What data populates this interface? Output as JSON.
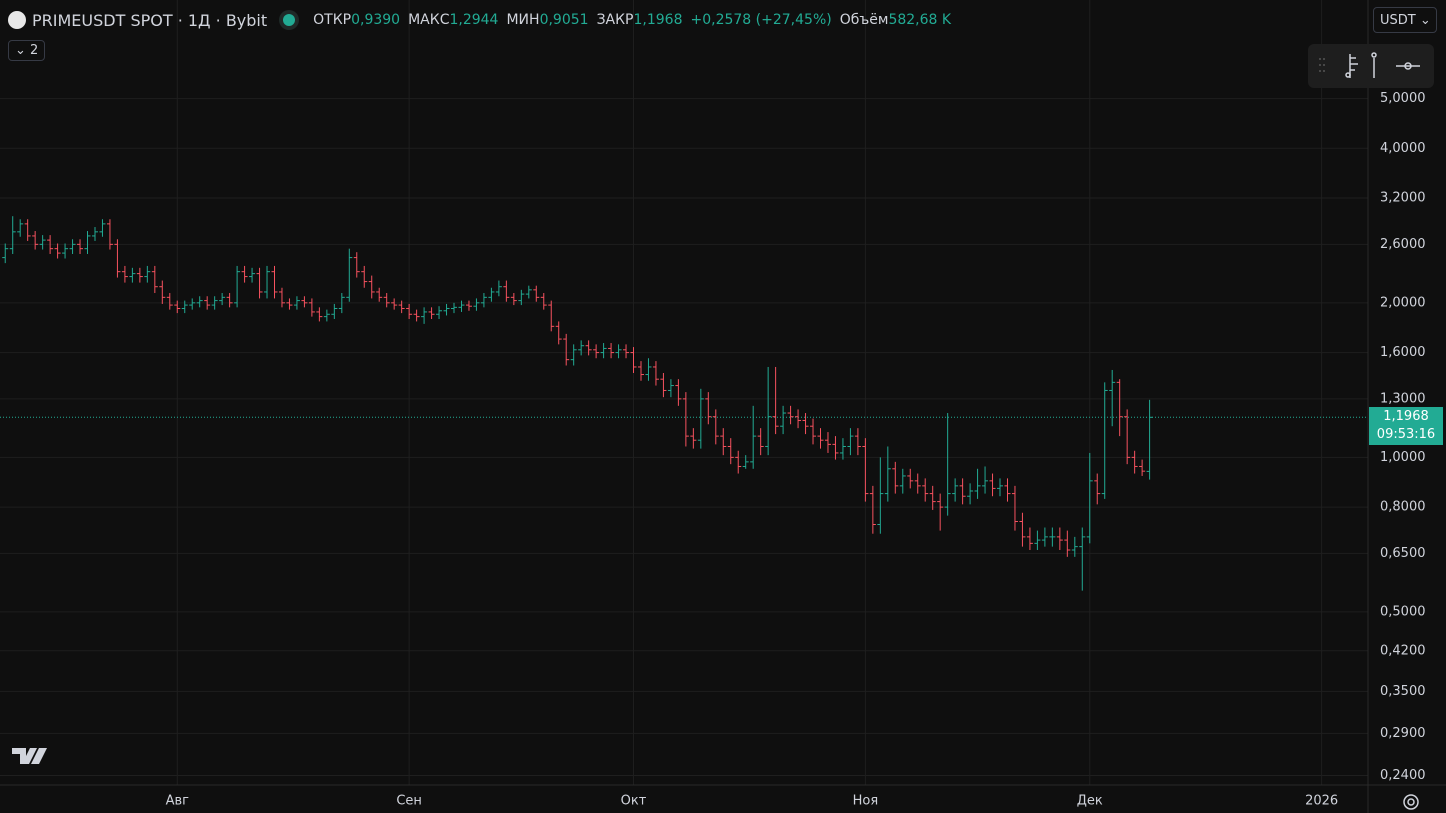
{
  "header": {
    "symbol": "PRIMEUSDT SPOT · 1Д · Bybit",
    "open_label": "ОТКР",
    "open": "0,9390",
    "high_label": "МАКС",
    "high": "1,2944",
    "low_label": "МИН",
    "low": "0,9051",
    "close_label": "ЗАКР",
    "close": "1,1968",
    "change": "+0,2578 (+27,45%)",
    "volume_label": "Объём",
    "volume": "582,68 K",
    "indicators": "2",
    "currency": "USDT"
  },
  "chart_data": {
    "type": "ohlc",
    "log_scale": true,
    "grid": true,
    "up_color": "#22ab94",
    "down_color": "#f7525f",
    "current_price": 1.1968,
    "price_label": "1,1968",
    "countdown": "09:53:16",
    "xlim": [
      -0.7,
      182.2
    ],
    "xticks": [
      {
        "value": 23,
        "label": "Авг"
      },
      {
        "value": 54,
        "label": "Сен"
      },
      {
        "value": 84,
        "label": "Окт"
      },
      {
        "value": 115,
        "label": "Ноя"
      },
      {
        "value": 145,
        "label": "Дек"
      },
      {
        "value": 176,
        "label": "2026"
      }
    ],
    "ylim": [
      0.23,
      7.78
    ],
    "yticks": [
      {
        "value": 5,
        "label": "5,0000"
      },
      {
        "value": 4,
        "label": "4,0000"
      },
      {
        "value": 3.2,
        "label": "3,2000"
      },
      {
        "value": 2.6,
        "label": "2,6000"
      },
      {
        "value": 2,
        "label": "2,0000"
      },
      {
        "value": 1.6,
        "label": "1,6000"
      },
      {
        "value": 1.3,
        "label": "1,3000"
      },
      {
        "value": 1,
        "label": "1,0000"
      },
      {
        "value": 0.8,
        "label": "0,8000"
      },
      {
        "value": 0.65,
        "label": "0,6500"
      },
      {
        "value": 0.5,
        "label": "0,5000"
      },
      {
        "value": 0.42,
        "label": "0,4200"
      },
      {
        "value": 0.35,
        "label": "0,3500"
      },
      {
        "value": 0.29,
        "label": "0,2900"
      },
      {
        "value": 0.24,
        "label": "0,2400"
      }
    ],
    "ohlc": [
      [
        2.45,
        2.61,
        2.39,
        2.55
      ],
      [
        2.55,
        2.95,
        2.49,
        2.75
      ],
      [
        2.75,
        2.91,
        2.69,
        2.85
      ],
      [
        2.85,
        2.91,
        2.64,
        2.7
      ],
      [
        2.7,
        2.76,
        2.54,
        2.6
      ],
      [
        2.6,
        2.71,
        2.54,
        2.65
      ],
      [
        2.65,
        2.71,
        2.49,
        2.55
      ],
      [
        2.55,
        2.61,
        2.44,
        2.5
      ],
      [
        2.5,
        2.61,
        2.44,
        2.55
      ],
      [
        2.55,
        2.66,
        2.49,
        2.6
      ],
      [
        2.6,
        2.66,
        2.49,
        2.55
      ],
      [
        2.55,
        2.76,
        2.49,
        2.7
      ],
      [
        2.7,
        2.81,
        2.64,
        2.75
      ],
      [
        2.75,
        2.91,
        2.69,
        2.85
      ],
      [
        2.85,
        2.91,
        2.54,
        2.6
      ],
      [
        2.6,
        2.66,
        2.24,
        2.3
      ],
      [
        2.3,
        2.36,
        2.19,
        2.25
      ],
      [
        2.25,
        2.34,
        2.19,
        2.28
      ],
      [
        2.28,
        2.34,
        2.19,
        2.25
      ],
      [
        2.25,
        2.36,
        2.19,
        2.3
      ],
      [
        2.3,
        2.36,
        2.09,
        2.15
      ],
      [
        2.15,
        2.21,
        1.99,
        2.05
      ],
      [
        2.05,
        2.09,
        1.94,
        1.98
      ],
      [
        1.98,
        2.02,
        1.91,
        1.95
      ],
      [
        1.95,
        2.02,
        1.91,
        1.98
      ],
      [
        1.98,
        2.04,
        1.94,
        2.0
      ],
      [
        2.0,
        2.06,
        1.96,
        2.02
      ],
      [
        2.02,
        2.06,
        1.94,
        1.98
      ],
      [
        1.98,
        2.06,
        1.94,
        2.02
      ],
      [
        2.02,
        2.09,
        1.98,
        2.05
      ],
      [
        2.05,
        2.09,
        1.96,
        2.0
      ],
      [
        2.0,
        2.36,
        1.96,
        2.3
      ],
      [
        2.3,
        2.36,
        2.19,
        2.25
      ],
      [
        2.25,
        2.34,
        2.19,
        2.28
      ],
      [
        2.28,
        2.34,
        2.04,
        2.1
      ],
      [
        2.1,
        2.36,
        2.04,
        2.3
      ],
      [
        2.3,
        2.36,
        2.04,
        2.1
      ],
      [
        2.1,
        2.14,
        1.96,
        2.0
      ],
      [
        2.0,
        2.04,
        1.94,
        1.98
      ],
      [
        1.98,
        2.06,
        1.94,
        2.02
      ],
      [
        2.02,
        2.06,
        1.96,
        2.0
      ],
      [
        2.0,
        2.04,
        1.88,
        1.92
      ],
      [
        1.92,
        1.96,
        1.84,
        1.88
      ],
      [
        1.88,
        1.94,
        1.84,
        1.9
      ],
      [
        1.9,
        1.99,
        1.86,
        1.95
      ],
      [
        1.95,
        2.09,
        1.91,
        2.05
      ],
      [
        2.05,
        2.55,
        2.01,
        2.45
      ],
      [
        2.45,
        2.51,
        2.24,
        2.3
      ],
      [
        2.3,
        2.36,
        2.14,
        2.2
      ],
      [
        2.2,
        2.26,
        2.04,
        2.1
      ],
      [
        2.1,
        2.14,
        2.01,
        2.05
      ],
      [
        2.05,
        2.09,
        1.96,
        2.0
      ],
      [
        2.0,
        2.04,
        1.94,
        1.98
      ],
      [
        1.98,
        2.02,
        1.91,
        1.95
      ],
      [
        1.95,
        1.99,
        1.86,
        1.9
      ],
      [
        1.9,
        1.94,
        1.84,
        1.88
      ],
      [
        1.88,
        1.96,
        1.82,
        1.92
      ],
      [
        1.92,
        1.96,
        1.86,
        1.9
      ],
      [
        1.9,
        1.97,
        1.86,
        1.93
      ],
      [
        1.93,
        1.99,
        1.89,
        1.95
      ],
      [
        1.95,
        2.0,
        1.91,
        1.96
      ],
      [
        1.96,
        2.02,
        1.92,
        1.98
      ],
      [
        1.98,
        2.02,
        1.93,
        1.97
      ],
      [
        1.97,
        2.04,
        1.93,
        2.0
      ],
      [
        2.0,
        2.09,
        1.96,
        2.05
      ],
      [
        2.05,
        2.14,
        2.01,
        2.1
      ],
      [
        2.1,
        2.21,
        2.06,
        2.15
      ],
      [
        2.15,
        2.21,
        2.01,
        2.05
      ],
      [
        2.05,
        2.09,
        1.98,
        2.02
      ],
      [
        2.02,
        2.12,
        1.98,
        2.08
      ],
      [
        2.08,
        2.16,
        2.04,
        2.12
      ],
      [
        2.12,
        2.16,
        2.01,
        2.05
      ],
      [
        2.05,
        2.09,
        1.94,
        1.98
      ],
      [
        1.98,
        2.02,
        1.76,
        1.8
      ],
      [
        1.8,
        1.84,
        1.66,
        1.7
      ],
      [
        1.7,
        1.74,
        1.51,
        1.55
      ],
      [
        1.55,
        1.66,
        1.51,
        1.62
      ],
      [
        1.62,
        1.69,
        1.58,
        1.65
      ],
      [
        1.65,
        1.69,
        1.58,
        1.62
      ],
      [
        1.62,
        1.66,
        1.56,
        1.6
      ],
      [
        1.6,
        1.67,
        1.56,
        1.63
      ],
      [
        1.63,
        1.67,
        1.56,
        1.6
      ],
      [
        1.6,
        1.66,
        1.56,
        1.62
      ],
      [
        1.62,
        1.66,
        1.56,
        1.6
      ],
      [
        1.6,
        1.64,
        1.46,
        1.5
      ],
      [
        1.5,
        1.54,
        1.41,
        1.45
      ],
      [
        1.45,
        1.56,
        1.41,
        1.5
      ],
      [
        1.5,
        1.54,
        1.38,
        1.42
      ],
      [
        1.42,
        1.46,
        1.31,
        1.35
      ],
      [
        1.35,
        1.42,
        1.31,
        1.38
      ],
      [
        1.38,
        1.42,
        1.26,
        1.3
      ],
      [
        1.3,
        1.34,
        1.05,
        1.1
      ],
      [
        1.1,
        1.14,
        1.04,
        1.08
      ],
      [
        1.08,
        1.36,
        1.04,
        1.3
      ],
      [
        1.3,
        1.34,
        1.16,
        1.2
      ],
      [
        1.2,
        1.24,
        1.06,
        1.1
      ],
      [
        1.1,
        1.14,
        1.01,
        1.05
      ],
      [
        1.05,
        1.09,
        0.97,
        1.0
      ],
      [
        1.0,
        1.03,
        0.93,
        0.96
      ],
      [
        0.96,
        1.01,
        0.95,
        0.98
      ],
      [
        0.98,
        1.26,
        0.95,
        1.1
      ],
      [
        1.1,
        1.14,
        1.01,
        1.05
      ],
      [
        1.05,
        1.5,
        1.01,
        1.2
      ],
      [
        1.2,
        1.5,
        1.11,
        1.15
      ],
      [
        1.15,
        1.26,
        1.11,
        1.22
      ],
      [
        1.22,
        1.26,
        1.16,
        1.2
      ],
      [
        1.2,
        1.24,
        1.14,
        1.18
      ],
      [
        1.18,
        1.22,
        1.11,
        1.15
      ],
      [
        1.15,
        1.19,
        1.06,
        1.1
      ],
      [
        1.1,
        1.14,
        1.04,
        1.08
      ],
      [
        1.08,
        1.12,
        1.02,
        1.06
      ],
      [
        1.06,
        1.1,
        0.99,
        1.02
      ],
      [
        1.02,
        1.09,
        0.99,
        1.05
      ],
      [
        1.05,
        1.14,
        1.01,
        1.1
      ],
      [
        1.1,
        1.14,
        1.01,
        1.05
      ],
      [
        1.05,
        1.09,
        0.82,
        0.85
      ],
      [
        0.85,
        0.88,
        0.71,
        0.74
      ],
      [
        0.74,
        1.0,
        0.71,
        0.85
      ],
      [
        0.85,
        1.05,
        0.82,
        0.95
      ],
      [
        0.95,
        0.98,
        0.85,
        0.88
      ],
      [
        0.88,
        0.95,
        0.85,
        0.92
      ],
      [
        0.92,
        0.95,
        0.87,
        0.9
      ],
      [
        0.9,
        0.93,
        0.85,
        0.88
      ],
      [
        0.88,
        0.91,
        0.82,
        0.85
      ],
      [
        0.85,
        0.88,
        0.79,
        0.82
      ],
      [
        0.82,
        0.85,
        0.72,
        0.8
      ],
      [
        0.8,
        1.22,
        0.77,
        0.85
      ],
      [
        0.85,
        0.91,
        0.82,
        0.88
      ],
      [
        0.88,
        0.91,
        0.81,
        0.84
      ],
      [
        0.84,
        0.89,
        0.81,
        0.86
      ],
      [
        0.86,
        0.95,
        0.83,
        0.88
      ],
      [
        0.88,
        0.96,
        0.85,
        0.9
      ],
      [
        0.9,
        0.93,
        0.84,
        0.87
      ],
      [
        0.87,
        0.91,
        0.84,
        0.88
      ],
      [
        0.88,
        0.91,
        0.82,
        0.85
      ],
      [
        0.85,
        0.88,
        0.72,
        0.75
      ],
      [
        0.75,
        0.78,
        0.67,
        0.7
      ],
      [
        0.7,
        0.73,
        0.66,
        0.68
      ],
      [
        0.68,
        0.72,
        0.66,
        0.69
      ],
      [
        0.69,
        0.73,
        0.67,
        0.7
      ],
      [
        0.7,
        0.73,
        0.67,
        0.7
      ],
      [
        0.7,
        0.73,
        0.66,
        0.69
      ],
      [
        0.69,
        0.72,
        0.64,
        0.66
      ],
      [
        0.66,
        0.7,
        0.64,
        0.67
      ],
      [
        0.67,
        0.73,
        0.55,
        0.7
      ],
      [
        0.7,
        1.02,
        0.68,
        0.9
      ],
      [
        0.9,
        0.93,
        0.81,
        0.85
      ],
      [
        0.85,
        1.4,
        0.83,
        1.35
      ],
      [
        1.35,
        1.48,
        1.15,
        1.4
      ],
      [
        1.4,
        1.42,
        1.1,
        1.2
      ],
      [
        1.2,
        1.24,
        0.97,
        1.0
      ],
      [
        1.0,
        1.03,
        0.93,
        0.96
      ],
      [
        0.96,
        0.99,
        0.92,
        0.94
      ],
      [
        0.939,
        1.2944,
        0.9051,
        1.1968
      ]
    ]
  }
}
